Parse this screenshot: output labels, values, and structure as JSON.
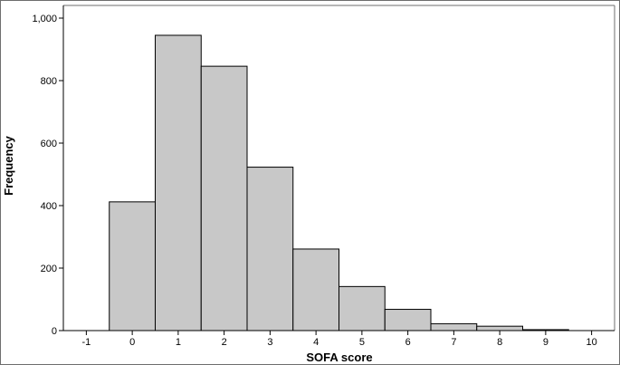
{
  "chart_data": {
    "type": "bar",
    "title": "",
    "xlabel": "SOFA score",
    "ylabel": "Frequency",
    "x_ticks": [
      -1,
      0,
      1,
      2,
      3,
      4,
      5,
      6,
      7,
      8,
      9,
      10
    ],
    "x_tick_labels": [
      "-1",
      "0",
      "1",
      "2",
      "3",
      "4",
      "5",
      "6",
      "7",
      "8",
      "9",
      "10"
    ],
    "xlim": [
      -1.5,
      10.5
    ],
    "ylim": [
      0,
      1000
    ],
    "y_ticks": [
      0,
      200,
      400,
      600,
      800,
      1000
    ],
    "y_tick_labels": [
      "0",
      "200",
      "400",
      "600",
      "800",
      "1,000"
    ],
    "categories": [
      0,
      1,
      2,
      3,
      4,
      5,
      6,
      7,
      8,
      9
    ],
    "values": [
      412,
      945,
      846,
      523,
      261,
      141,
      68,
      22,
      14,
      3
    ],
    "bar_width": 1,
    "colors": {
      "bar_fill": "#c8c8c8",
      "bar_stroke": "#000000",
      "axis": "#000000",
      "frame": "#6e6e6e"
    },
    "grid": false,
    "legend": "none"
  }
}
